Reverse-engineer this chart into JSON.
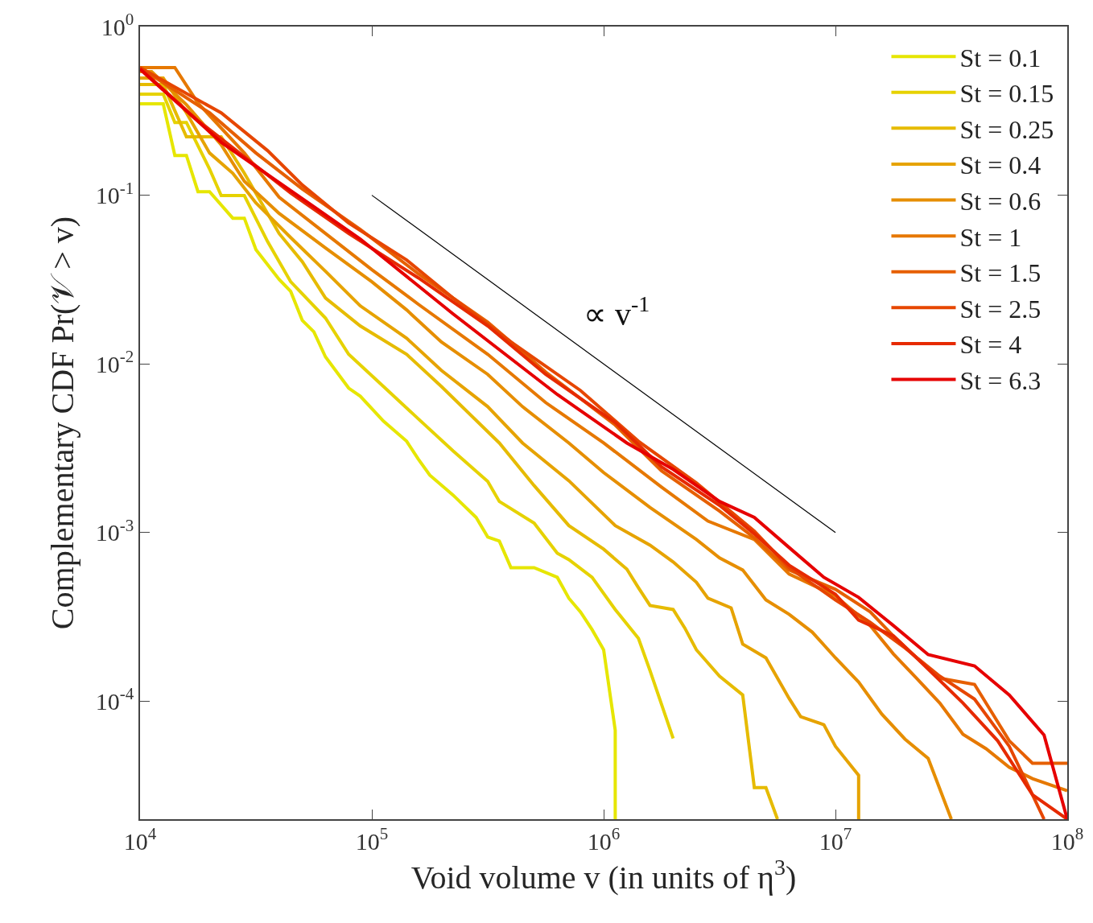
{
  "chart_data": {
    "type": "line",
    "xlabel": "Void volume v (in units of η$^{3}$)",
    "ylabel": "Complementary CDF Pr(𝒱 > v)",
    "log": "xy",
    "grid": false,
    "legend": "top right",
    "marker": "none",
    "line_style": "solid",
    "xlim": [
      10000,
      100000000
    ],
    "ylim": [
      2e-05,
      1
    ],
    "xticks": [
      {
        "value": 10000,
        "label": "10$^{4}$"
      },
      {
        "value": 100000,
        "label": "10$^{5}$"
      },
      {
        "value": 1000000,
        "label": "10$^{6}$"
      },
      {
        "value": 10000000,
        "label": "10$^{7}$"
      },
      {
        "value": 100000000,
        "label": "10$^{8}$"
      }
    ],
    "yticks": [
      {
        "value": 0.0001,
        "label": "10$^{-4}$"
      },
      {
        "value": 0.001,
        "label": "10$^{-3}$"
      },
      {
        "value": 0.01,
        "label": "10$^{-2}$"
      },
      {
        "value": 0.1,
        "label": "10$^{-1}$"
      },
      {
        "value": 1,
        "label": "10$^{0}$"
      }
    ],
    "annotations": [
      "∝ v$^{-1}$"
    ],
    "series": [
      {
        "name": "St = 0.1",
        "color": "#e6e600",
        "x": [
          10000,
          12590,
          14130,
          15850,
          17780,
          19950,
          25120,
          28180,
          31620,
          39810,
          44670,
          50120,
          56230,
          63100,
          79430,
          89130,
          112200,
          141300,
          158500,
          177800,
          223900,
          281800,
          316200,
          354800,
          398100,
          501200,
          631000,
          707900,
          794300,
          891300,
          1000000,
          1122000,
          1122000
        ],
        "values": [
          0.348,
          0.348,
          0.172,
          0.172,
          0.105,
          0.105,
          0.0731,
          0.0731,
          0.0476,
          0.0317,
          0.0269,
          0.0181,
          0.0155,
          0.011,
          0.00719,
          0.00644,
          0.00458,
          0.00348,
          0.00273,
          0.00219,
          0.00167,
          0.00123,
          0.000942,
          0.000891,
          0.00062,
          0.00062,
          0.000543,
          0.000408,
          0.000339,
          0.000266,
          0.000202,
          6.73e-05,
          2e-05
        ]
      },
      {
        "name": "St = 0.15",
        "color": "#e6d200",
        "x": [
          10000,
          12590,
          14130,
          15850,
          19950,
          22390,
          28180,
          35480,
          44670,
          63100,
          79430,
          112200,
          158500,
          223900,
          316200,
          354800,
          501200,
          631000,
          707900,
          891300,
          1122000,
          1413000,
          1585000,
          1995000
        ],
        "values": [
          0.397,
          0.397,
          0.27,
          0.27,
          0.143,
          0.0995,
          0.0995,
          0.0532,
          0.0307,
          0.0187,
          0.0114,
          0.00735,
          0.00473,
          0.00305,
          0.00201,
          0.00153,
          0.00114,
          0.000755,
          0.000692,
          0.000543,
          0.00035,
          0.000236,
          0.000152,
          6.03e-05
        ]
      },
      {
        "name": "St = 0.25",
        "color": "#e6bb00",
        "x": [
          10000,
          12590,
          15850,
          22390,
          28180,
          39810,
          50120,
          63100,
          89130,
          141300,
          199500,
          354800,
          501200,
          707900,
          1000000,
          1259000,
          1413000,
          1585000,
          1995000,
          2239000,
          2512000,
          3162000,
          3981000,
          4467000,
          5012000,
          5623000
        ],
        "values": [
          0.453,
          0.453,
          0.222,
          0.222,
          0.135,
          0.0593,
          0.0404,
          0.0246,
          0.0168,
          0.0114,
          0.00735,
          0.0034,
          0.0019,
          0.0011,
          0.000798,
          0.000607,
          0.000471,
          0.00037,
          0.00035,
          0.000272,
          0.000202,
          0.000141,
          0.000109,
          3.08e-05,
          3.08e-05,
          2e-05
        ]
      },
      {
        "name": "St = 0.4",
        "color": "#e6a300",
        "x": [
          10000,
          12590,
          15850,
          19950,
          25120,
          31620,
          44670,
          63100,
          89130,
          141300,
          199500,
          316200,
          446700,
          707900,
          1122000,
          1585000,
          1995000,
          2512000,
          2818000,
          3548000,
          3981000,
          5012000,
          6310000,
          7079000,
          8913000,
          10000000,
          12590000,
          12590000
        ],
        "values": [
          0.495,
          0.495,
          0.308,
          0.178,
          0.135,
          0.0901,
          0.0561,
          0.0354,
          0.0221,
          0.0142,
          0.00916,
          0.00558,
          0.0034,
          0.00203,
          0.0011,
          0.000843,
          0.00067,
          0.000508,
          0.000408,
          0.000358,
          0.000218,
          0.000181,
          0.000104,
          8.11e-05,
          7.27e-05,
          5.41e-05,
          3.64e-05,
          2e-05
        ]
      },
      {
        "name": "St = 0.6",
        "color": "#e68e00",
        "x": [
          10000,
          11220,
          15850,
          22390,
          28180,
          39810,
          63100,
          100000,
          141300,
          199500,
          316200,
          446700,
          707900,
          1000000,
          1585000,
          2512000,
          3162000,
          3981000,
          5012000,
          6310000,
          7943000,
          10000000,
          12590000,
          15850000,
          19950000,
          25120000,
          31620000
        ],
        "values": [
          0.541,
          0.541,
          0.344,
          0.199,
          0.121,
          0.0781,
          0.0487,
          0.0307,
          0.0209,
          0.0135,
          0.00867,
          0.00558,
          0.0034,
          0.00227,
          0.00141,
          0.00091,
          0.000708,
          0.0006,
          0.000399,
          0.000328,
          0.000257,
          0.000181,
          0.00013,
          8.39e-05,
          5.97e-05,
          4.58e-05,
          2e-05
        ]
      },
      {
        "name": "St = 1",
        "color": "#e67800",
        "x": [
          10000,
          14130,
          17780,
          28180,
          39810,
          63100,
          100000,
          158500,
          316200,
          562300,
          1000000,
          1778000,
          2818000,
          4467000,
          6310000,
          10000000,
          14130000,
          17780000,
          22390000,
          28180000,
          35480000,
          44670000,
          56230000,
          70790000,
          100000000
        ],
        "values": [
          0.571,
          0.571,
          0.352,
          0.178,
          0.0973,
          0.0593,
          0.0362,
          0.0226,
          0.0114,
          0.0059,
          0.0034,
          0.00186,
          0.00117,
          0.00091,
          0.000568,
          0.000422,
          0.000281,
          0.000191,
          0.000137,
          9.77e-05,
          6.37e-05,
          5.23e-05,
          4.06e-05,
          3.48e-05,
          2.95e-05
        ]
      },
      {
        "name": "St = 1.5",
        "color": "#e65f00",
        "x": [
          10000,
          19950,
          31620,
          50120,
          89130,
          158500,
          316200,
          562300,
          1122000,
          1778000,
          3162000,
          4467000,
          6310000,
          10000000,
          14130000,
          17780000,
          22390000,
          28180000,
          39810000,
          56230000,
          70790000,
          100000000
        ],
        "values": [
          0.571,
          0.308,
          0.178,
          0.109,
          0.0627,
          0.0343,
          0.0177,
          0.00896,
          0.00434,
          0.00232,
          0.00134,
          0.000931,
          0.0006,
          0.000461,
          0.000339,
          0.000244,
          0.000181,
          0.000137,
          0.000126,
          5.83e-05,
          4.29e-05,
          4.29e-05
        ]
      },
      {
        "name": "St = 2.5",
        "color": "#e64600",
        "x": [
          10000,
          22390,
          35480,
          50120,
          79430,
          141300,
          223900,
          398100,
          794300,
          1413000,
          2512000,
          4467000,
          6310000,
          10000000,
          14130000,
          19950000,
          28180000,
          39810000,
          56230000,
          70790000,
          79430000
        ],
        "values": [
          0.571,
          0.308,
          0.184,
          0.115,
          0.0685,
          0.0413,
          0.0246,
          0.0135,
          0.00696,
          0.00348,
          0.00197,
          0.00102,
          0.00062,
          0.000399,
          0.000294,
          0.000207,
          0.000141,
          0.000103,
          5.41e-05,
          2.79e-05,
          2e-05
        ]
      },
      {
        "name": "St = 4",
        "color": "#e62a00",
        "x": [
          10000,
          17780,
          28180,
          44670,
          79430,
          158500,
          316200,
          562300,
          1122000,
          1778000,
          3162000,
          4467000,
          6310000,
          10000000,
          12590000,
          17780000,
          22390000,
          35480000,
          50120000,
          70790000,
          100000000
        ],
        "values": [
          0.565,
          0.277,
          0.169,
          0.103,
          0.0593,
          0.0324,
          0.0168,
          0.00867,
          0.00449,
          0.00245,
          0.00145,
          0.000984,
          0.000641,
          0.000431,
          0.000303,
          0.000244,
          0.000181,
          9.77e-05,
          5.83e-05,
          2.79e-05,
          2e-05
        ]
      },
      {
        "name": "St = 6.3",
        "color": "#e60000",
        "x": [
          10000,
          22390,
          39810,
          89130,
          223900,
          631000,
          1259000,
          1995000,
          3162000,
          4467000,
          6310000,
          8913000,
          12590000,
          17780000,
          25120000,
          39810000,
          56230000,
          79430000,
          100000000
        ],
        "values": [
          0.558,
          0.206,
          0.119,
          0.055,
          0.0198,
          0.00659,
          0.0034,
          0.00237,
          0.00153,
          0.00123,
          0.000816,
          0.000543,
          0.000413,
          0.000281,
          0.000189,
          0.000162,
          0.000109,
          6.31e-05,
          2e-05
        ]
      },
      {
        "color": "#000000",
        "x": [
          100000,
          10000000
        ],
        "values": [
          0.1,
          0.001
        ]
      }
    ]
  }
}
